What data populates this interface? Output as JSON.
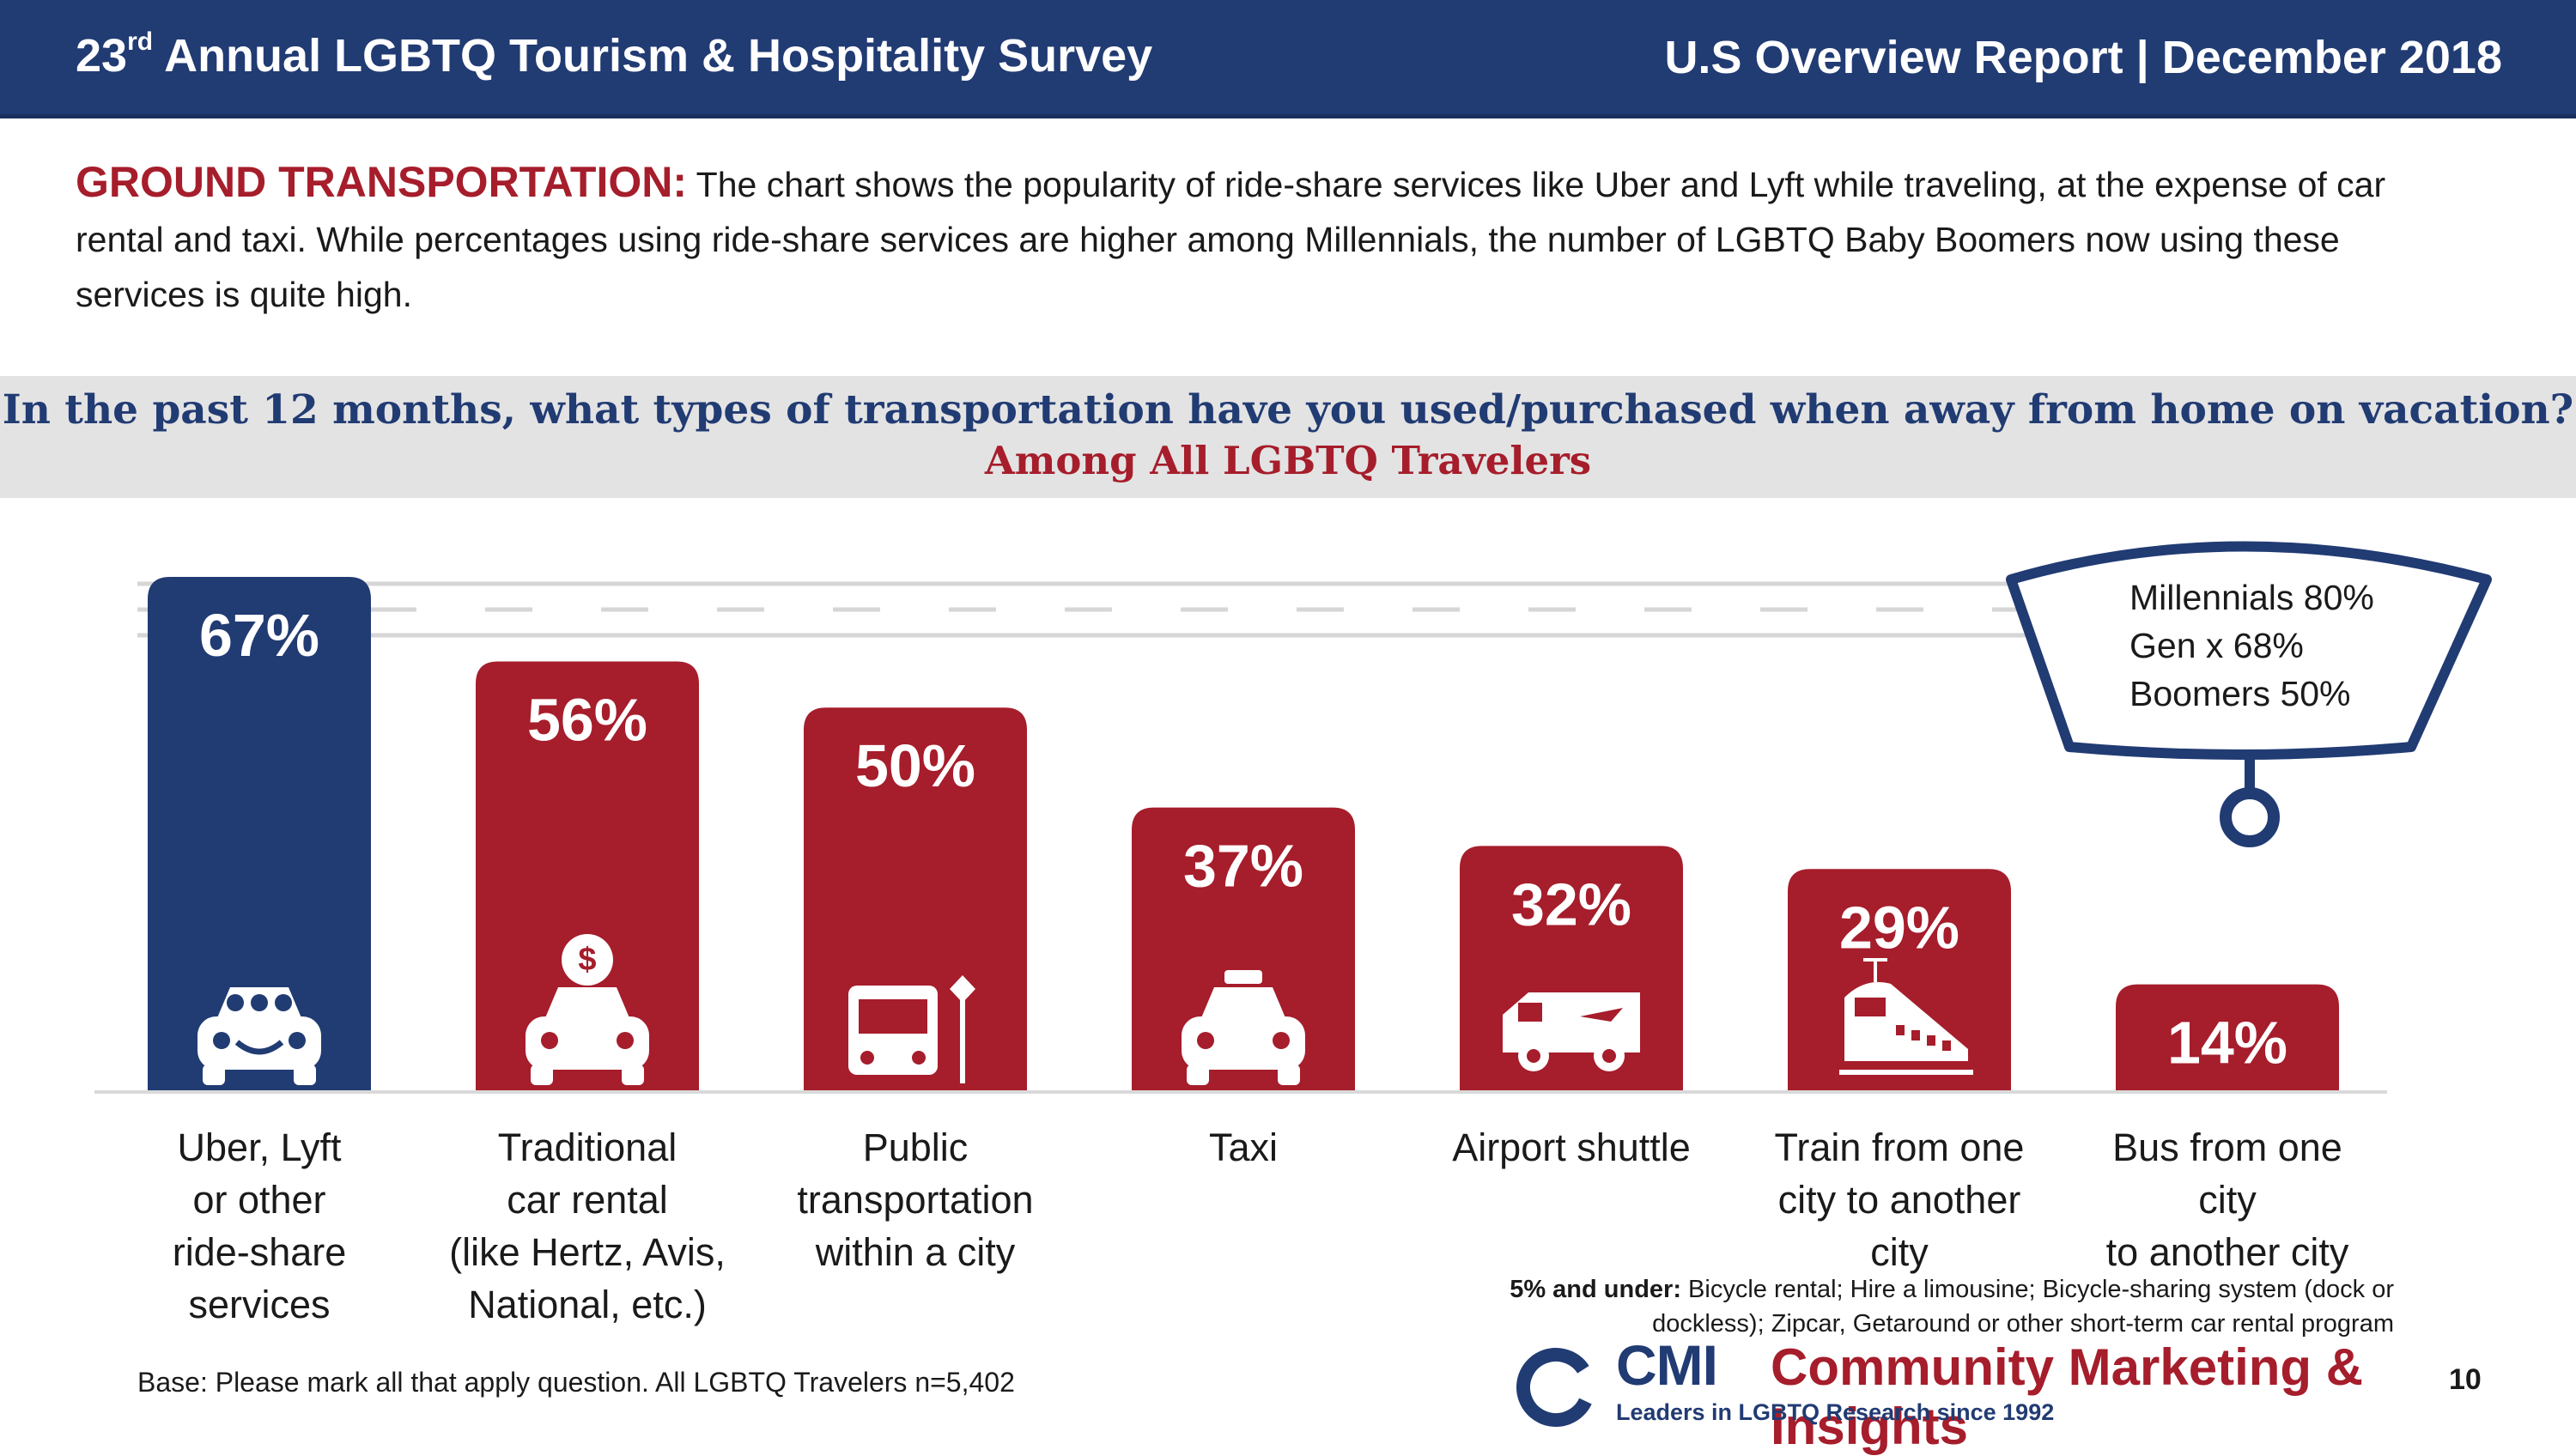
{
  "header": {
    "title_prefix": "23",
    "title_sup": "rd",
    "title_rest": " Annual LGBTQ Tourism & Hospitality Survey",
    "report": "U.S Overview Report | December 2018"
  },
  "intro": {
    "lead": "GROUND TRANSPORTATION:",
    "text": " The chart shows the popularity of ride-share services like Uber and Lyft while traveling, at the expense of car rental and taxi.  While percentages using ride-share services are higher among Millennials, the number of LGBTQ Baby Boomers now using these services is quite high."
  },
  "question": {
    "text": "In the past 12 months, what types of transportation have you used/purchased when away from home on vacation?",
    "subtext": "Among All LGBTQ Travelers"
  },
  "chart_data": {
    "type": "bar",
    "categories": [
      "Uber, Lyft or other ride-share services",
      "Traditional car rental (like Hertz, Avis, National, etc.)",
      "Public transportation within a city",
      "Taxi",
      "Airport shuttle",
      "Train from one city to another city",
      "Bus from one city to another city"
    ],
    "category_lines": [
      [
        "Uber, Lyft",
        "or other",
        "ride-share",
        "services"
      ],
      [
        "Traditional",
        "car rental",
        "(like Hertz, Avis,",
        "National, etc.)"
      ],
      [
        "Public",
        "transportation",
        "within a city"
      ],
      [
        "Taxi"
      ],
      [
        "Airport shuttle"
      ],
      [
        "Train from one",
        "city to another",
        "city"
      ],
      [
        "Bus from one city",
        "to another city"
      ]
    ],
    "values": [
      67,
      56,
      50,
      37,
      32,
      29,
      14
    ],
    "labels": [
      "67%",
      "56%",
      "50%",
      "37%",
      "32%",
      "29%",
      "14%"
    ],
    "icons": [
      "rideshare-car-icon",
      "dollar-car-icon",
      "bus-stop-icon",
      "taxi-icon",
      "shuttle-van-icon",
      "train-icon",
      ""
    ],
    "colors": [
      "#213b73",
      "#a61d2b",
      "#a61d2b",
      "#a61d2b",
      "#a61d2b",
      "#a61d2b",
      "#a61d2b"
    ],
    "ylim": [
      0,
      67
    ]
  },
  "callout": {
    "lines": [
      "Millennials 80%",
      "Gen x 68%",
      "Boomers 50%"
    ]
  },
  "footnote": {
    "bold": "5% and under:",
    "text": " Bicycle rental; Hire a limousine; Bicycle-sharing system (dock or dockless); Zipcar, Getaround or other short-term car rental program"
  },
  "base_text": "Base: Please mark all that apply question. All LGBTQ Travelers n=5,402",
  "logo": {
    "cmi": "CMI",
    "name": "Community Marketing & Insights",
    "tagline": "Leaders in LGBTQ Research since 1992"
  },
  "page_number": "10"
}
